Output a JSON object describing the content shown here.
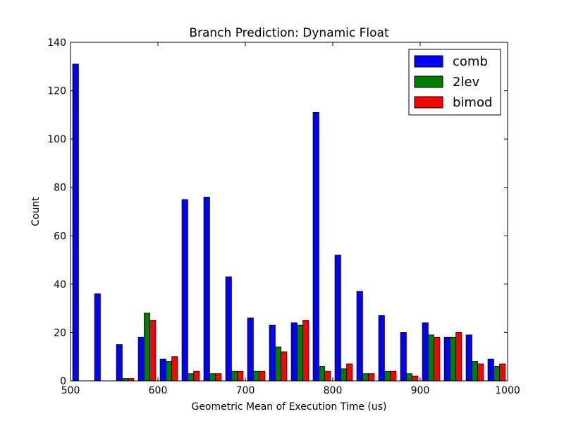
{
  "chart_data": {
    "type": "bar",
    "title": "Branch Prediction: Dynamic Float",
    "xlabel": "Geometric Mean of Execution Time (us)",
    "ylabel": "Count",
    "xlim": [
      500,
      1000
    ],
    "ylim": [
      0,
      140
    ],
    "xticks": [
      500,
      600,
      700,
      800,
      900,
      1000
    ],
    "yticks": [
      0,
      20,
      40,
      60,
      80,
      100,
      120,
      140
    ],
    "grid": false,
    "legend_position": "top-right",
    "bin_edges": [
      500,
      525,
      550,
      575,
      600,
      625,
      650,
      675,
      700,
      725,
      750,
      775,
      800,
      825,
      850,
      875,
      900,
      925,
      950,
      975,
      1000
    ],
    "series": [
      {
        "name": "comb",
        "color": "#0000ff",
        "values": [
          131,
          36,
          15,
          18,
          9,
          75,
          76,
          43,
          26,
          23,
          24,
          111,
          52,
          37,
          27,
          20,
          24,
          18,
          19,
          9
        ]
      },
      {
        "name": "2lev",
        "color": "#008000",
        "values": [
          0,
          0,
          1,
          28,
          8,
          3,
          3,
          4,
          4,
          14,
          23,
          6,
          5,
          3,
          4,
          3,
          19,
          18,
          8,
          6
        ]
      },
      {
        "name": "bimod",
        "color": "#ff0000",
        "values": [
          0,
          0,
          1,
          25,
          10,
          4,
          3,
          4,
          4,
          12,
          25,
          4,
          7,
          3,
          4,
          2,
          18,
          20,
          7,
          7
        ]
      }
    ]
  }
}
